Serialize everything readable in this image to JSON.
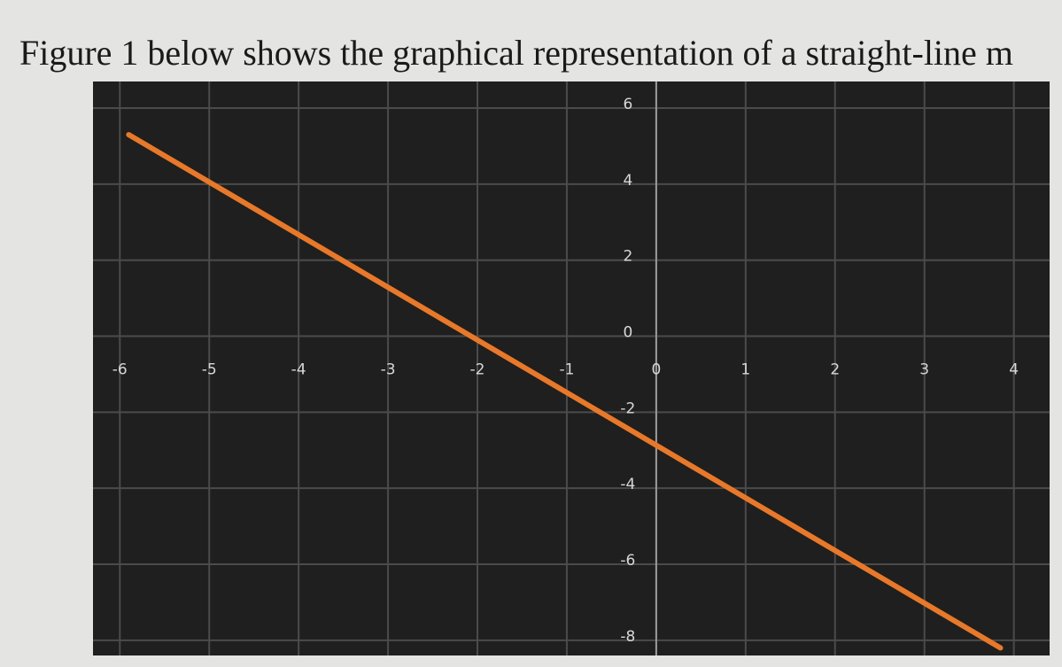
{
  "header": {
    "text": "Figure 1 below shows the graphical representation of a straight-line m"
  },
  "chart_data": {
    "type": "line",
    "x": [
      -5.9,
      3.85
    ],
    "series": [
      {
        "color": "#e8782a",
        "values": [
          5.3,
          -8.2
        ]
      }
    ],
    "xlim": [
      -6.3,
      4.4
    ],
    "ylim": [
      -8.4,
      6.7
    ],
    "xticks": [
      -6,
      -5,
      -4,
      -3,
      -2,
      -1,
      0,
      1,
      2,
      3,
      4
    ],
    "yticks": [
      -8,
      -6,
      -4,
      -2,
      0,
      2,
      4,
      6
    ],
    "grid": true
  }
}
